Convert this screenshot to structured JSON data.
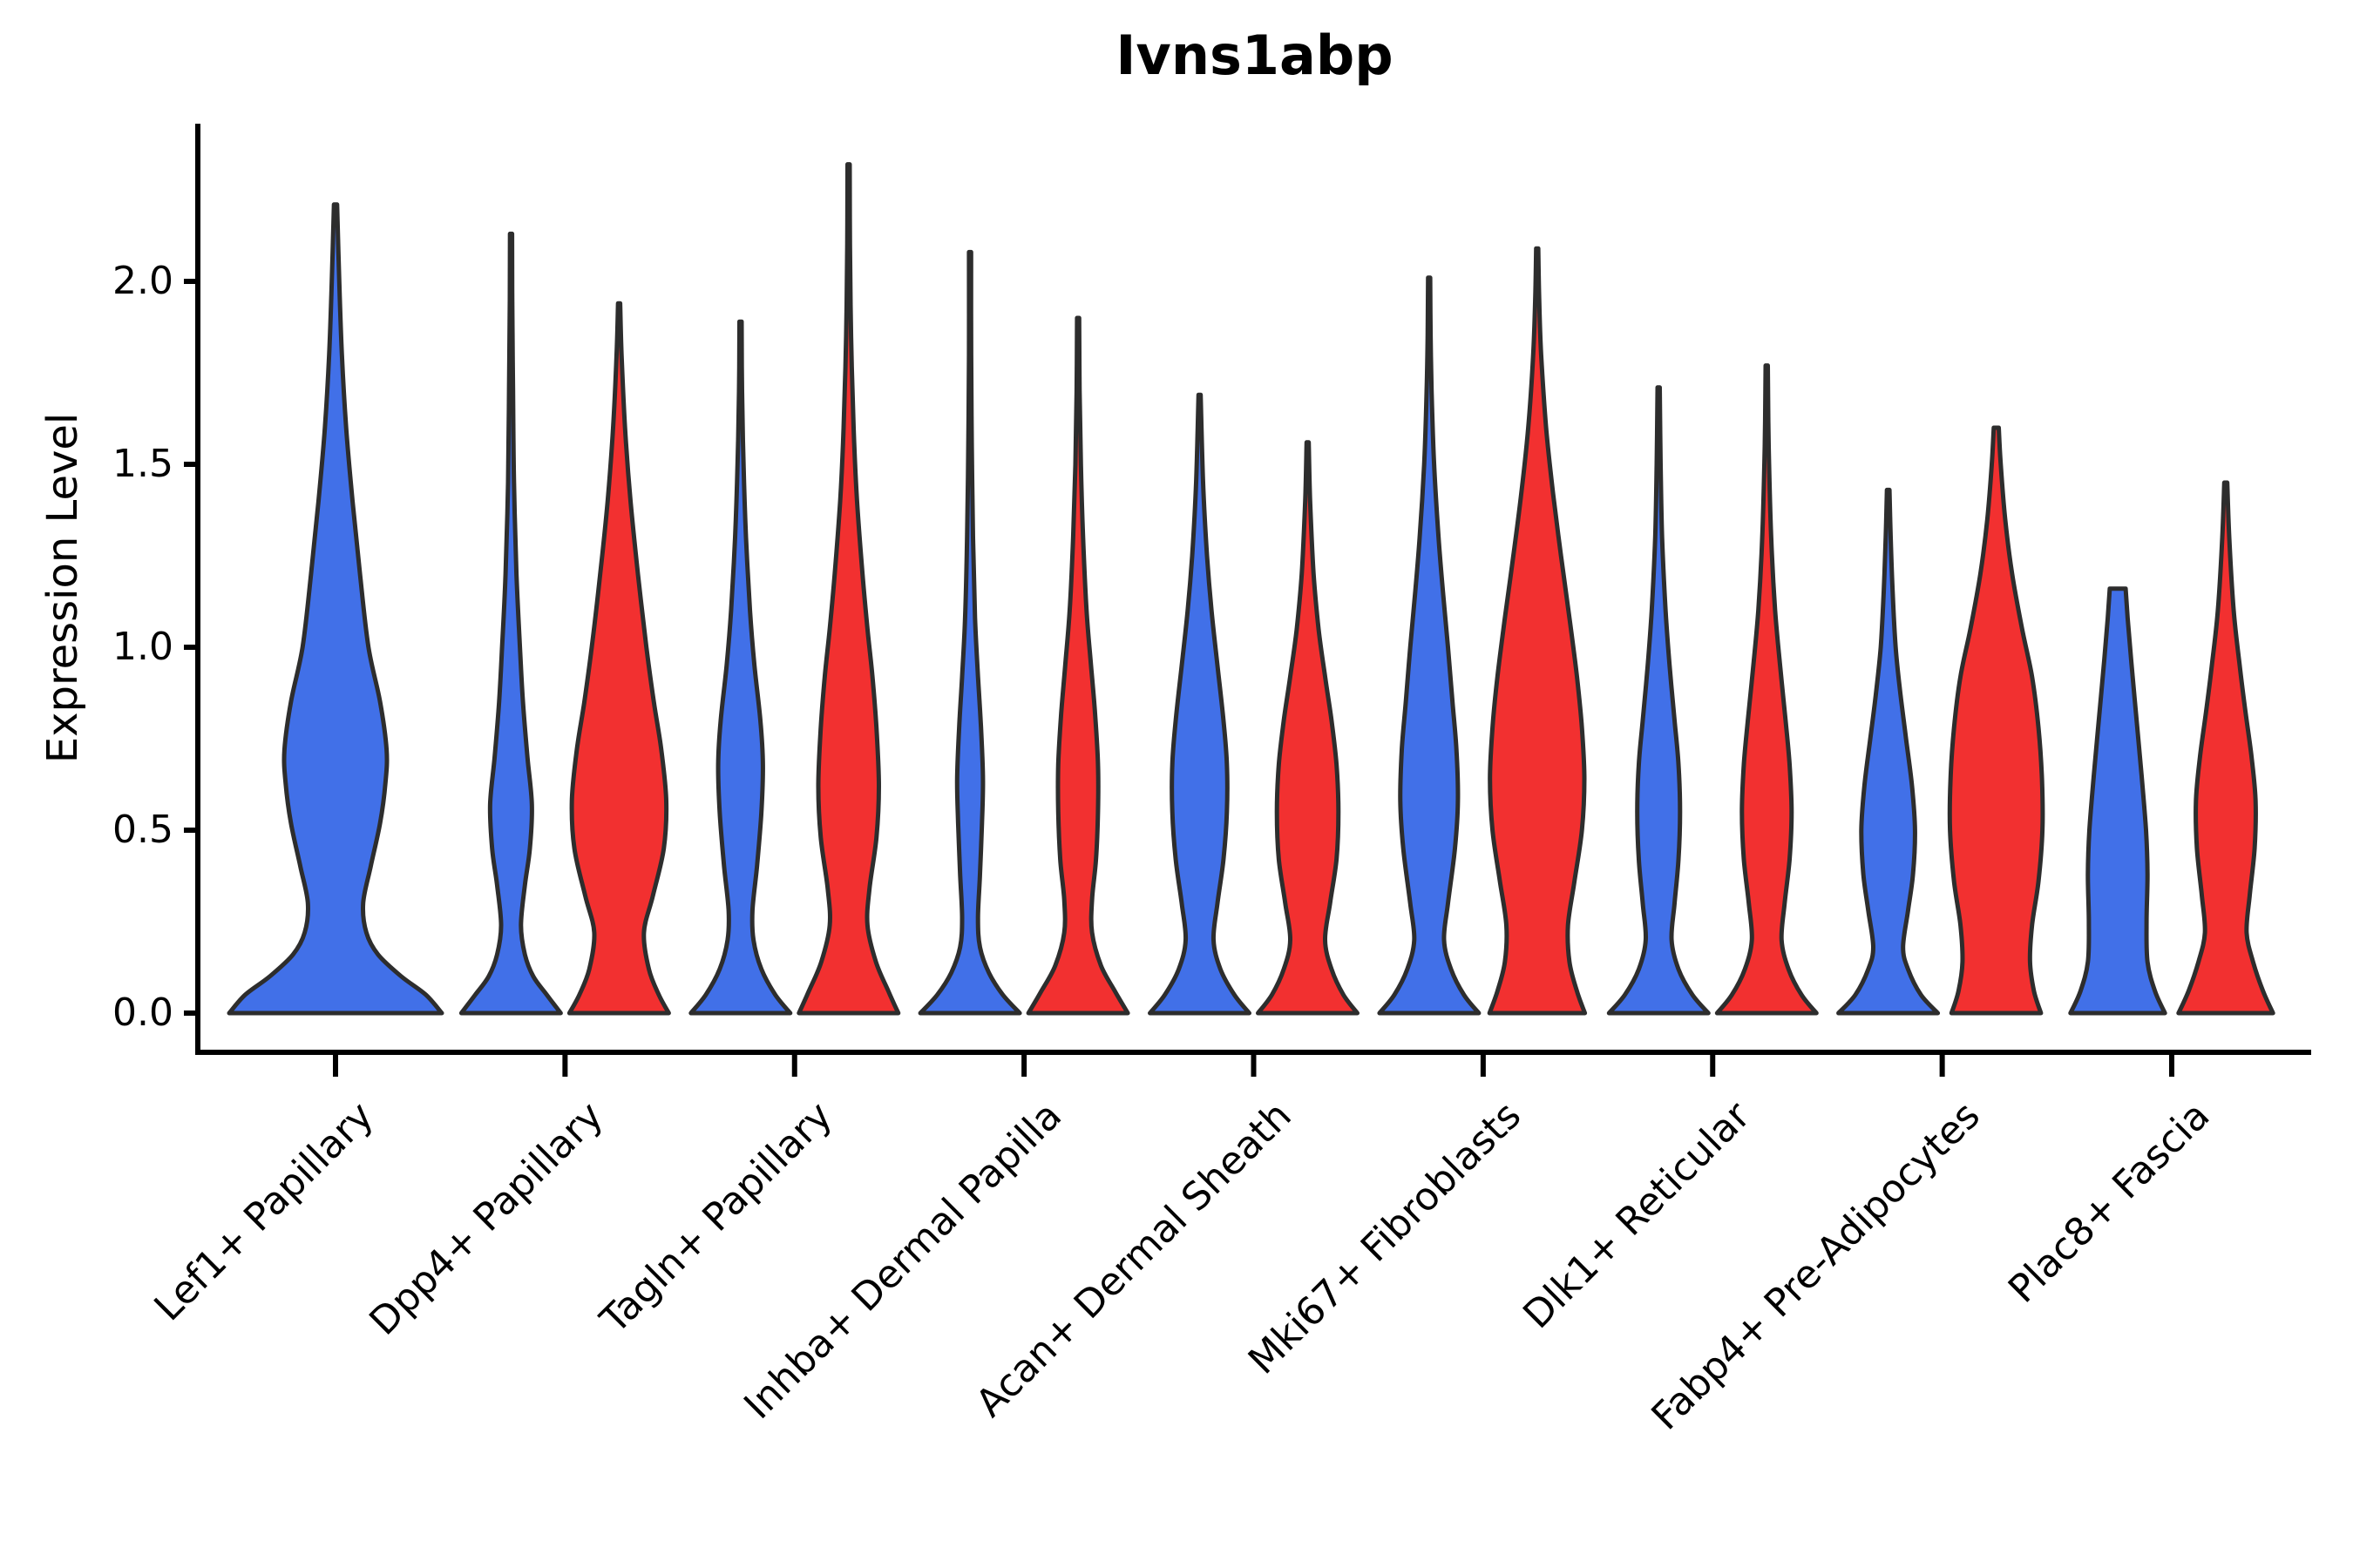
{
  "title": "Ivns1abp",
  "axes": {
    "ylabel": "Expression Level",
    "ytick_labels": [
      "0.0",
      "0.5",
      "1.0",
      "1.5",
      "2.0"
    ]
  },
  "chart_data": {
    "type": "violin",
    "title": "Ivns1abp",
    "xlabel": "",
    "ylabel": "Expression Level",
    "ylim": [
      0,
      2.43
    ],
    "yticks": [
      0.0,
      0.5,
      1.0,
      1.5,
      2.0
    ],
    "ytick_labels": [
      "0.0",
      "0.5",
      "1.0",
      "1.5",
      "2.0"
    ],
    "grid": false,
    "legend_position": "none",
    "categories": [
      "Lef1+ Papillary",
      "Dpp4+ Papillary",
      "Tagln+ Papillary",
      "Inhba+ Dermal Papilla",
      "Acan+ Dermal Sheath",
      "Mki67+ Fibroblasts",
      "Dlk1+ Reticular",
      "Fabp4+ Pre-Adipocytes",
      "Plac8+ Fascia"
    ],
    "colors": {
      "blue": "#4170E8",
      "red": "#F23030",
      "outline": "#2D2D2D",
      "axis": "#000000"
    },
    "series_note": "Each category shows a left (blue) and right (red) violin of Ivns1abp expression density; first category has a single blue violin. Profiles are [expression_value, half_width_fraction] pairs; max = top of violin tail.",
    "violins": [
      {
        "category_index": 0,
        "side": "single",
        "color_key": "blue",
        "max": 2.21,
        "profile": [
          [
            0,
            1.0
          ],
          [
            0.05,
            0.85
          ],
          [
            0.1,
            0.62
          ],
          [
            0.16,
            0.4
          ],
          [
            0.22,
            0.29
          ],
          [
            0.3,
            0.26
          ],
          [
            0.4,
            0.33
          ],
          [
            0.52,
            0.42
          ],
          [
            0.63,
            0.47
          ],
          [
            0.72,
            0.48
          ],
          [
            0.85,
            0.42
          ],
          [
            1.0,
            0.31
          ],
          [
            1.2,
            0.23
          ],
          [
            1.4,
            0.16
          ],
          [
            1.6,
            0.1
          ],
          [
            1.8,
            0.06
          ],
          [
            2.0,
            0.035
          ],
          [
            2.21,
            0.015
          ]
        ]
      },
      {
        "category_index": 1,
        "side": "left",
        "color_key": "blue",
        "max": 2.13,
        "profile": [
          [
            0,
            1.0
          ],
          [
            0.05,
            0.72
          ],
          [
            0.1,
            0.45
          ],
          [
            0.16,
            0.28
          ],
          [
            0.24,
            0.2
          ],
          [
            0.35,
            0.28
          ],
          [
            0.45,
            0.38
          ],
          [
            0.57,
            0.42
          ],
          [
            0.7,
            0.33
          ],
          [
            0.85,
            0.24
          ],
          [
            1.0,
            0.18
          ],
          [
            1.2,
            0.11
          ],
          [
            1.45,
            0.06
          ],
          [
            1.7,
            0.04
          ],
          [
            1.95,
            0.025
          ],
          [
            2.13,
            0.015
          ]
        ]
      },
      {
        "category_index": 1,
        "side": "right",
        "color_key": "red",
        "max": 1.94,
        "profile": [
          [
            0,
            1.0
          ],
          [
            0.05,
            0.8
          ],
          [
            0.12,
            0.6
          ],
          [
            0.22,
            0.5
          ],
          [
            0.32,
            0.68
          ],
          [
            0.45,
            0.9
          ],
          [
            0.58,
            0.95
          ],
          [
            0.72,
            0.85
          ],
          [
            0.85,
            0.7
          ],
          [
            1.0,
            0.55
          ],
          [
            1.2,
            0.38
          ],
          [
            1.4,
            0.23
          ],
          [
            1.6,
            0.12
          ],
          [
            1.8,
            0.05
          ],
          [
            1.94,
            0.02
          ]
        ]
      },
      {
        "category_index": 2,
        "side": "left",
        "color_key": "blue",
        "max": 1.89,
        "profile": [
          [
            0,
            1.0
          ],
          [
            0.05,
            0.7
          ],
          [
            0.12,
            0.42
          ],
          [
            0.2,
            0.26
          ],
          [
            0.28,
            0.24
          ],
          [
            0.4,
            0.33
          ],
          [
            0.55,
            0.42
          ],
          [
            0.68,
            0.45
          ],
          [
            0.8,
            0.4
          ],
          [
            0.95,
            0.28
          ],
          [
            1.1,
            0.19
          ],
          [
            1.3,
            0.11
          ],
          [
            1.5,
            0.06
          ],
          [
            1.7,
            0.03
          ],
          [
            1.89,
            0.015
          ]
        ]
      },
      {
        "category_index": 2,
        "side": "right",
        "color_key": "red",
        "max": 2.32,
        "profile": [
          [
            0,
            1.0
          ],
          [
            0.06,
            0.8
          ],
          [
            0.14,
            0.55
          ],
          [
            0.24,
            0.38
          ],
          [
            0.34,
            0.42
          ],
          [
            0.48,
            0.56
          ],
          [
            0.62,
            0.61
          ],
          [
            0.78,
            0.56
          ],
          [
            0.92,
            0.48
          ],
          [
            1.05,
            0.38
          ],
          [
            1.2,
            0.28
          ],
          [
            1.4,
            0.17
          ],
          [
            1.6,
            0.1
          ],
          [
            1.85,
            0.05
          ],
          [
            2.1,
            0.028
          ],
          [
            2.32,
            0.015
          ]
        ]
      },
      {
        "category_index": 3,
        "side": "left",
        "color_key": "blue",
        "max": 2.08,
        "profile": [
          [
            0,
            1.0
          ],
          [
            0.05,
            0.66
          ],
          [
            0.11,
            0.38
          ],
          [
            0.18,
            0.2
          ],
          [
            0.26,
            0.16
          ],
          [
            0.38,
            0.2
          ],
          [
            0.52,
            0.24
          ],
          [
            0.64,
            0.26
          ],
          [
            0.78,
            0.22
          ],
          [
            0.92,
            0.16
          ],
          [
            1.08,
            0.1
          ],
          [
            1.3,
            0.06
          ],
          [
            1.55,
            0.035
          ],
          [
            1.8,
            0.022
          ],
          [
            2.08,
            0.015
          ]
        ]
      },
      {
        "category_index": 3,
        "side": "right",
        "color_key": "red",
        "max": 1.9,
        "profile": [
          [
            0,
            1.0
          ],
          [
            0.06,
            0.74
          ],
          [
            0.13,
            0.46
          ],
          [
            0.22,
            0.28
          ],
          [
            0.31,
            0.28
          ],
          [
            0.42,
            0.36
          ],
          [
            0.55,
            0.4
          ],
          [
            0.68,
            0.4
          ],
          [
            0.82,
            0.34
          ],
          [
            0.95,
            0.26
          ],
          [
            1.1,
            0.17
          ],
          [
            1.3,
            0.1
          ],
          [
            1.5,
            0.055
          ],
          [
            1.7,
            0.03
          ],
          [
            1.9,
            0.015
          ]
        ]
      },
      {
        "category_index": 4,
        "side": "left",
        "color_key": "blue",
        "max": 1.69,
        "profile": [
          [
            0,
            1.0
          ],
          [
            0.05,
            0.7
          ],
          [
            0.12,
            0.42
          ],
          [
            0.2,
            0.28
          ],
          [
            0.3,
            0.36
          ],
          [
            0.42,
            0.48
          ],
          [
            0.55,
            0.55
          ],
          [
            0.68,
            0.55
          ],
          [
            0.8,
            0.48
          ],
          [
            0.95,
            0.36
          ],
          [
            1.1,
            0.24
          ],
          [
            1.25,
            0.15
          ],
          [
            1.45,
            0.07
          ],
          [
            1.69,
            0.02
          ]
        ]
      },
      {
        "category_index": 4,
        "side": "right",
        "color_key": "red",
        "max": 1.56,
        "profile": [
          [
            0,
            1.0
          ],
          [
            0.05,
            0.72
          ],
          [
            0.12,
            0.48
          ],
          [
            0.2,
            0.35
          ],
          [
            0.3,
            0.45
          ],
          [
            0.42,
            0.58
          ],
          [
            0.55,
            0.62
          ],
          [
            0.68,
            0.58
          ],
          [
            0.8,
            0.48
          ],
          [
            0.92,
            0.35
          ],
          [
            1.05,
            0.22
          ],
          [
            1.2,
            0.12
          ],
          [
            1.4,
            0.05
          ],
          [
            1.56,
            0.02
          ]
        ]
      },
      {
        "category_index": 5,
        "side": "left",
        "color_key": "blue",
        "max": 2.01,
        "profile": [
          [
            0,
            1.0
          ],
          [
            0.05,
            0.7
          ],
          [
            0.12,
            0.44
          ],
          [
            0.2,
            0.3
          ],
          [
            0.3,
            0.38
          ],
          [
            0.45,
            0.52
          ],
          [
            0.58,
            0.58
          ],
          [
            0.72,
            0.55
          ],
          [
            0.85,
            0.47
          ],
          [
            1.0,
            0.38
          ],
          [
            1.15,
            0.28
          ],
          [
            1.3,
            0.19
          ],
          [
            1.5,
            0.1
          ],
          [
            1.7,
            0.05
          ],
          [
            1.85,
            0.03
          ],
          [
            2.01,
            0.015
          ]
        ]
      },
      {
        "category_index": 5,
        "side": "right",
        "color_key": "red",
        "max": 2.09,
        "profile": [
          [
            0,
            0.96
          ],
          [
            0.06,
            0.8
          ],
          [
            0.14,
            0.65
          ],
          [
            0.24,
            0.62
          ],
          [
            0.36,
            0.75
          ],
          [
            0.5,
            0.9
          ],
          [
            0.64,
            0.95
          ],
          [
            0.78,
            0.9
          ],
          [
            0.92,
            0.8
          ],
          [
            1.08,
            0.65
          ],
          [
            1.25,
            0.48
          ],
          [
            1.42,
            0.32
          ],
          [
            1.6,
            0.18
          ],
          [
            1.8,
            0.08
          ],
          [
            1.95,
            0.04
          ],
          [
            2.09,
            0.015
          ]
        ]
      },
      {
        "category_index": 6,
        "side": "left",
        "color_key": "blue",
        "max": 1.71,
        "profile": [
          [
            0,
            1.0
          ],
          [
            0.05,
            0.68
          ],
          [
            0.12,
            0.4
          ],
          [
            0.2,
            0.26
          ],
          [
            0.3,
            0.32
          ],
          [
            0.42,
            0.4
          ],
          [
            0.55,
            0.43
          ],
          [
            0.68,
            0.4
          ],
          [
            0.8,
            0.32
          ],
          [
            0.95,
            0.22
          ],
          [
            1.1,
            0.14
          ],
          [
            1.3,
            0.07
          ],
          [
            1.5,
            0.04
          ],
          [
            1.71,
            0.02
          ]
        ]
      },
      {
        "category_index": 6,
        "side": "right",
        "color_key": "red",
        "max": 1.77,
        "profile": [
          [
            0,
            1.0
          ],
          [
            0.05,
            0.7
          ],
          [
            0.12,
            0.44
          ],
          [
            0.2,
            0.3
          ],
          [
            0.3,
            0.36
          ],
          [
            0.42,
            0.46
          ],
          [
            0.55,
            0.5
          ],
          [
            0.68,
            0.46
          ],
          [
            0.8,
            0.38
          ],
          [
            0.95,
            0.27
          ],
          [
            1.1,
            0.17
          ],
          [
            1.3,
            0.09
          ],
          [
            1.55,
            0.04
          ],
          [
            1.77,
            0.02
          ]
        ]
      },
      {
        "category_index": 7,
        "side": "left",
        "color_key": "blue",
        "max": 1.43,
        "profile": [
          [
            0,
            1.0
          ],
          [
            0.05,
            0.66
          ],
          [
            0.12,
            0.4
          ],
          [
            0.18,
            0.3
          ],
          [
            0.28,
            0.4
          ],
          [
            0.38,
            0.5
          ],
          [
            0.5,
            0.54
          ],
          [
            0.62,
            0.48
          ],
          [
            0.75,
            0.36
          ],
          [
            0.88,
            0.24
          ],
          [
            1.0,
            0.15
          ],
          [
            1.15,
            0.09
          ],
          [
            1.3,
            0.05
          ],
          [
            1.43,
            0.025
          ]
        ]
      },
      {
        "category_index": 7,
        "side": "right",
        "color_key": "red",
        "max": 1.6,
        "profile": [
          [
            0,
            0.9
          ],
          [
            0.06,
            0.76
          ],
          [
            0.14,
            0.68
          ],
          [
            0.24,
            0.72
          ],
          [
            0.36,
            0.85
          ],
          [
            0.5,
            0.93
          ],
          [
            0.64,
            0.92
          ],
          [
            0.78,
            0.85
          ],
          [
            0.92,
            0.72
          ],
          [
            1.05,
            0.52
          ],
          [
            1.2,
            0.32
          ],
          [
            1.35,
            0.18
          ],
          [
            1.5,
            0.09
          ],
          [
            1.6,
            0.05
          ]
        ]
      },
      {
        "category_index": 8,
        "side": "left",
        "color_key": "blue",
        "max": 1.16,
        "profile": [
          [
            0,
            0.95
          ],
          [
            0.06,
            0.75
          ],
          [
            0.14,
            0.6
          ],
          [
            0.25,
            0.58
          ],
          [
            0.38,
            0.6
          ],
          [
            0.5,
            0.57
          ],
          [
            0.65,
            0.48
          ],
          [
            0.8,
            0.38
          ],
          [
            0.95,
            0.28
          ],
          [
            1.08,
            0.2
          ],
          [
            1.16,
            0.16
          ]
        ]
      },
      {
        "category_index": 8,
        "side": "right",
        "color_key": "red",
        "max": 1.45,
        "profile": [
          [
            0,
            0.95
          ],
          [
            0.06,
            0.75
          ],
          [
            0.14,
            0.55
          ],
          [
            0.22,
            0.42
          ],
          [
            0.32,
            0.48
          ],
          [
            0.45,
            0.58
          ],
          [
            0.58,
            0.6
          ],
          [
            0.7,
            0.52
          ],
          [
            0.82,
            0.4
          ],
          [
            0.95,
            0.28
          ],
          [
            1.1,
            0.16
          ],
          [
            1.3,
            0.07
          ],
          [
            1.45,
            0.03
          ]
        ]
      }
    ]
  }
}
